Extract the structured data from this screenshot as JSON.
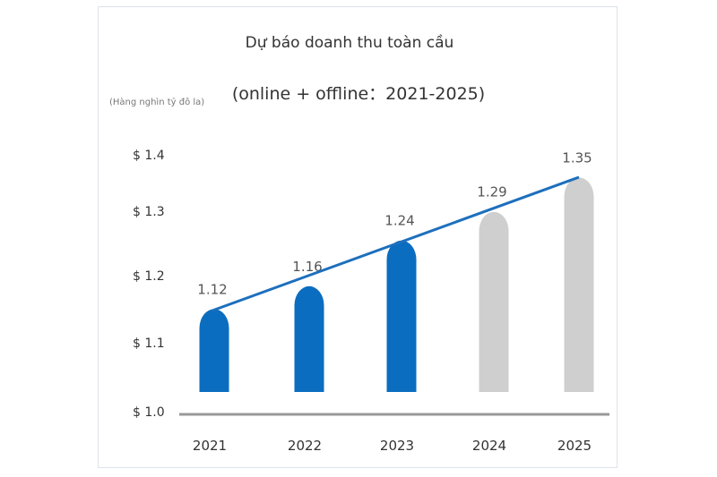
{
  "chart_data": {
    "type": "bar",
    "title": "Dự báo doanh thu toàn cầu",
    "subtitle": "(online + offline：2021-2025)",
    "ylabel": "(Hàng nghìn tỷ đô la)",
    "xlabel": "",
    "categories": [
      "2021",
      "2022",
      "2023",
      "2024",
      "2025"
    ],
    "values": [
      1.12,
      1.16,
      1.24,
      1.29,
      1.35
    ],
    "value_labels": [
      "1.12",
      "1.16",
      "1.24",
      "1.29",
      "1.35"
    ],
    "y_ticks": [
      "$ 1.0",
      "$ 1.1",
      "$ 1.2",
      "$ 1.3",
      "$ 1.4"
    ],
    "ylim": [
      1.0,
      1.4
    ],
    "grid": false,
    "legend": "none",
    "trend_line": true,
    "colors": {
      "actual": "#0b6dbf",
      "forecast": "#cfcfcf",
      "trend": "#1d6fbd",
      "axis": "#999999"
    },
    "forecast_from": "2024"
  }
}
